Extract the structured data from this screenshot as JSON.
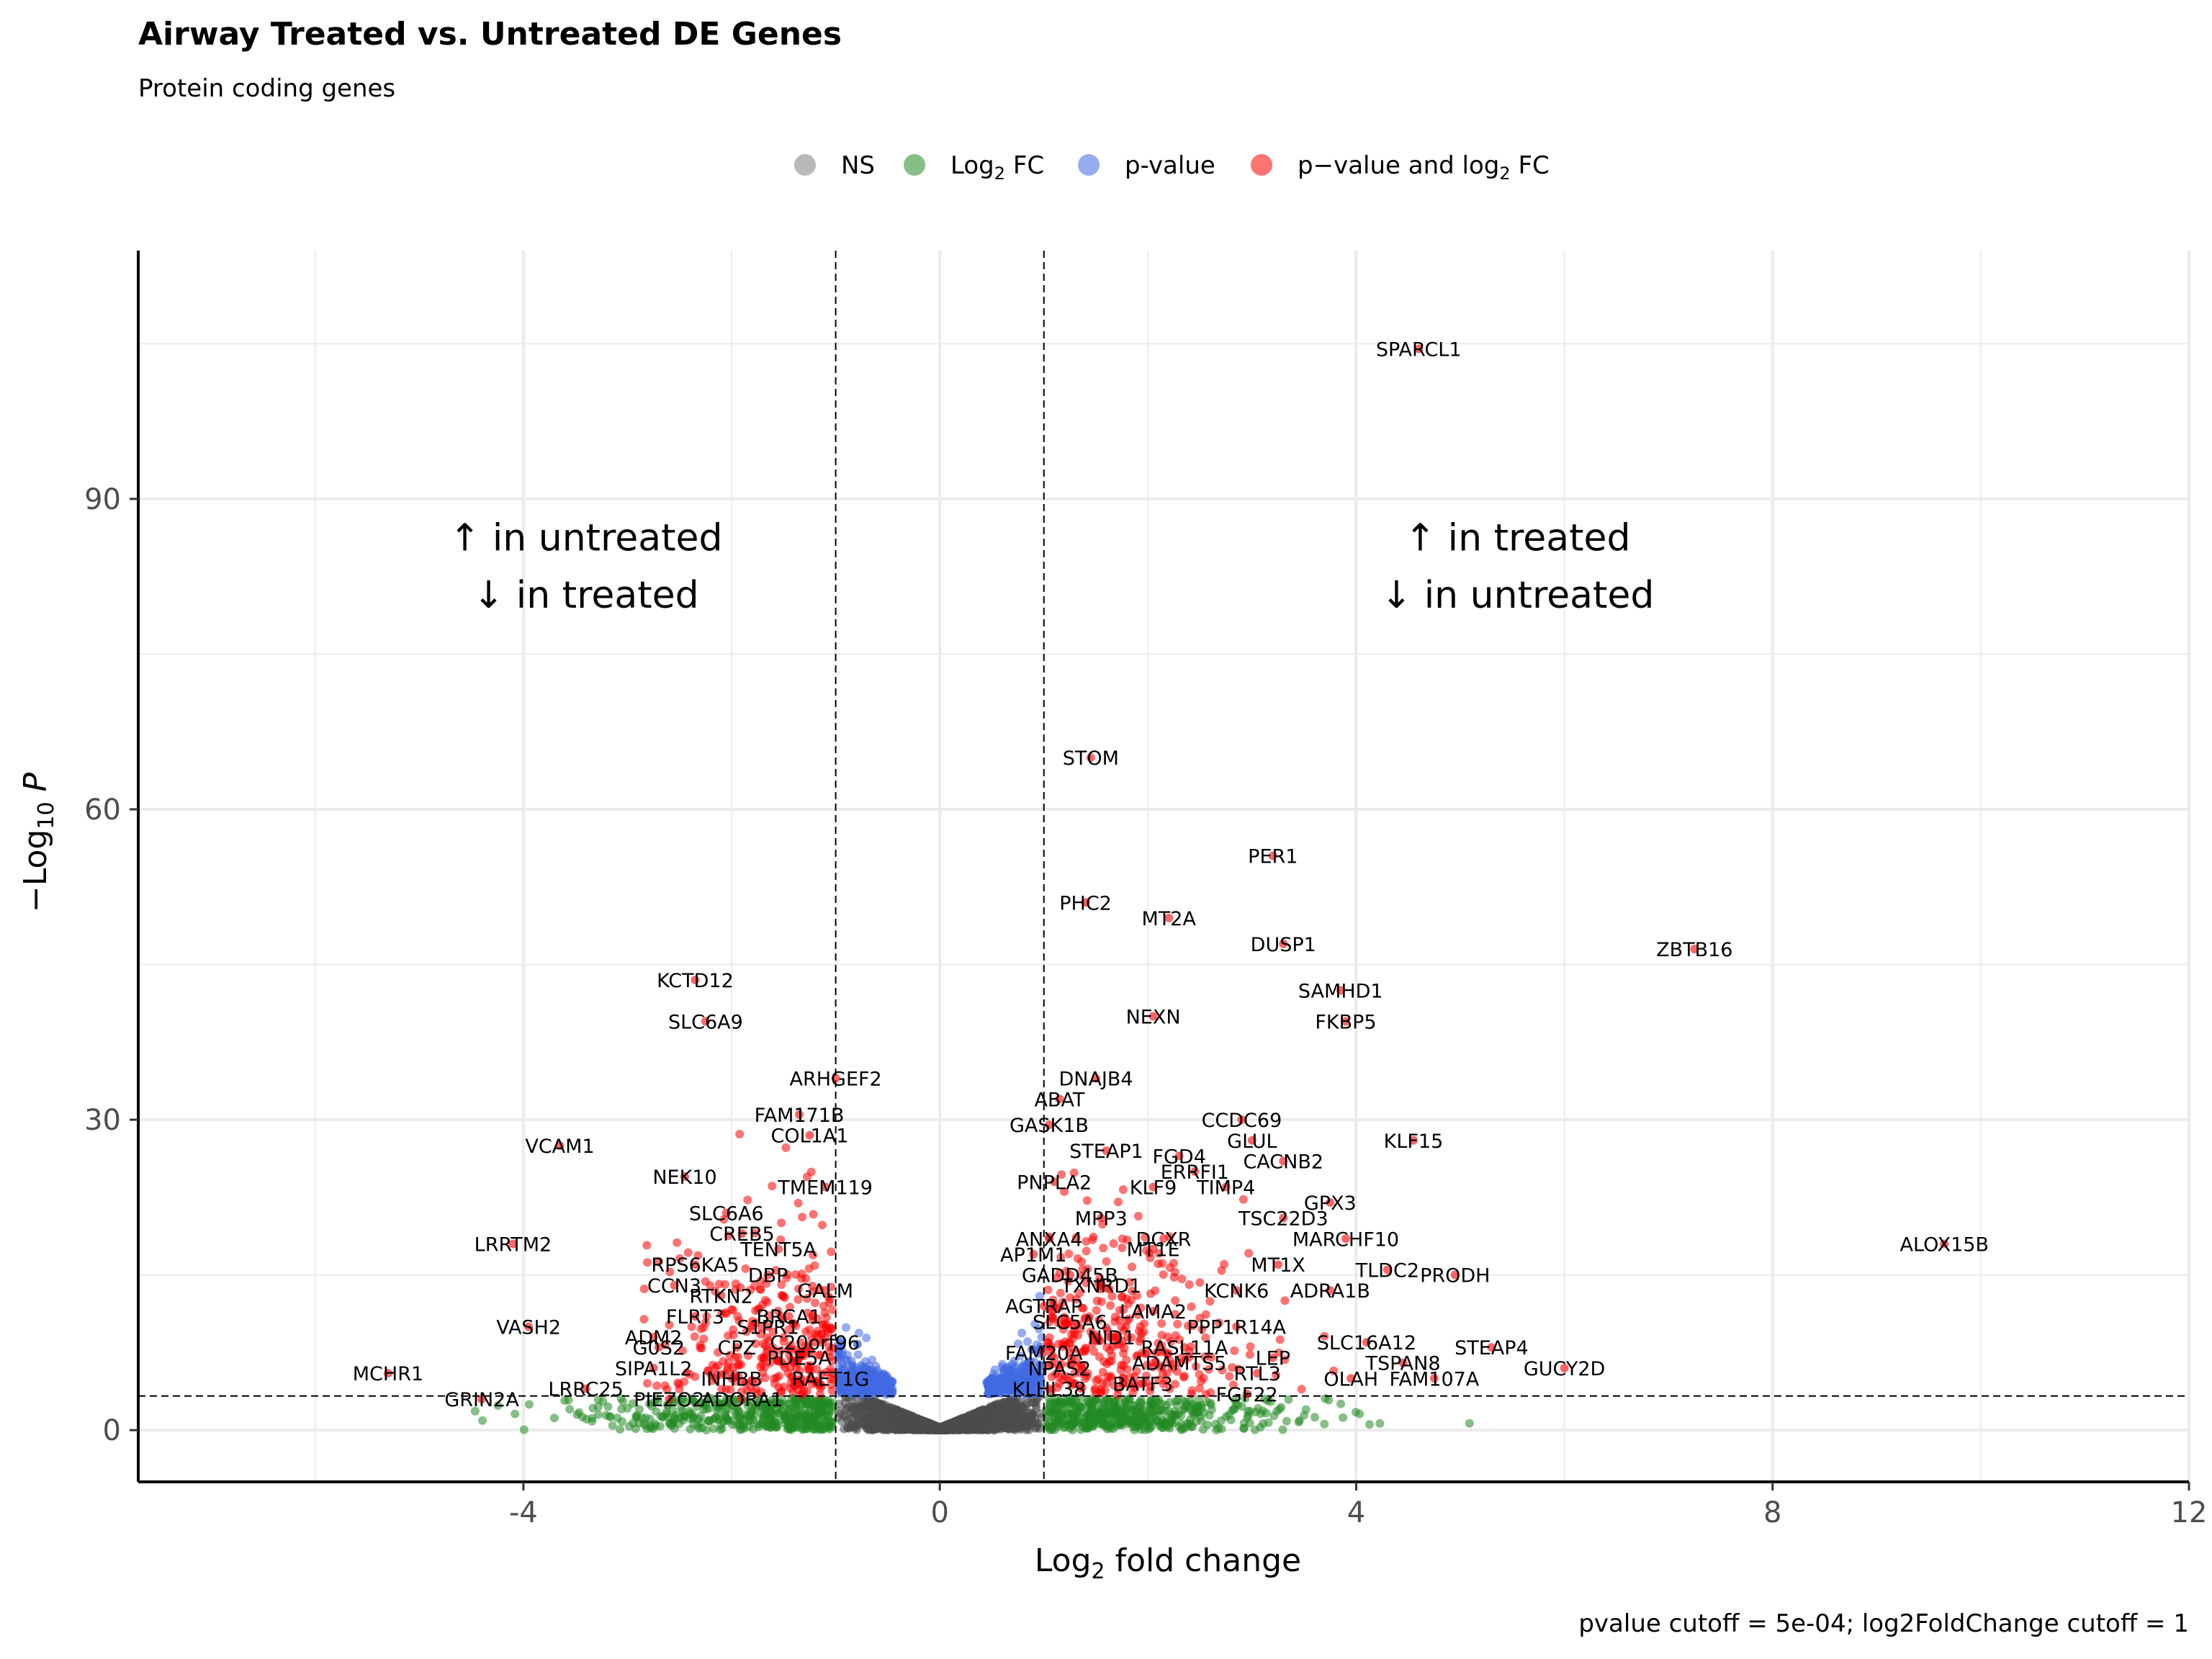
{
  "chart_data": {
    "type": "scatter",
    "title": "Airway Treated vs. Untreated DE Genes",
    "subtitle": "Protein coding genes",
    "xlabel": "Log2 fold change",
    "ylabel": "-Log10 P",
    "caption": "pvalue cutoff = 5e-04; log2FoldChange cutoff = 1",
    "xlim": [
      -7.7,
      12
    ],
    "ylim": [
      -5,
      114
    ],
    "x_ticks": [
      -4,
      0,
      4,
      8,
      12
    ],
    "y_ticks": [
      0,
      30,
      60,
      90
    ],
    "x_tick_labels": [
      "-4",
      "0",
      "4",
      "8",
      "12"
    ],
    "y_tick_labels": [
      "0",
      "30",
      "60",
      "90"
    ],
    "grid": true,
    "legend_position": "top",
    "legend": [
      {
        "key": "ns",
        "label": "NS",
        "color": "#808080"
      },
      {
        "key": "fc",
        "label": "Log2 FC",
        "color": "#228B22"
      },
      {
        "key": "p",
        "label": "p-value",
        "color": "#4169E1"
      },
      {
        "key": "both",
        "label": "p−value and log2 FC",
        "color": "#FF0000"
      }
    ],
    "cutoffs": {
      "log2fc": 1,
      "pvalue": 0.0005,
      "neg_log10_p": 3.3
    },
    "annotations": [
      {
        "text": "↑ in untreated",
        "x": -3.4,
        "y": 85
      },
      {
        "text": "↓ in treated",
        "x": -3.4,
        "y": 79.5
      },
      {
        "text": "↑ in treated",
        "x": 5.55,
        "y": 85
      },
      {
        "text": "↓ in untreated",
        "x": 5.55,
        "y": 79.5
      }
    ],
    "labeled_points": [
      {
        "label": "SPARCL1",
        "x": 4.6,
        "y": 104.5
      },
      {
        "label": "STOM",
        "x": 1.45,
        "y": 65
      },
      {
        "label": "PER1",
        "x": 3.2,
        "y": 55.5
      },
      {
        "label": "PHC2",
        "x": 1.4,
        "y": 51
      },
      {
        "label": "MT2A",
        "x": 2.2,
        "y": 49.5
      },
      {
        "label": "DUSP1",
        "x": 3.3,
        "y": 47
      },
      {
        "label": "ZBTB16",
        "x": 7.25,
        "y": 46.5
      },
      {
        "label": "KCTD12",
        "x": -2.35,
        "y": 43.5
      },
      {
        "label": "SAMHD1",
        "x": 3.85,
        "y": 42.5
      },
      {
        "label": "SLC6A9",
        "x": -2.25,
        "y": 39.5
      },
      {
        "label": "NEXN",
        "x": 2.05,
        "y": 40
      },
      {
        "label": "FKBP5",
        "x": 3.9,
        "y": 39.5
      },
      {
        "label": "ARHGEF2",
        "x": -1.0,
        "y": 34
      },
      {
        "label": "DNAJB4",
        "x": 1.5,
        "y": 34
      },
      {
        "label": "ABAT",
        "x": 1.15,
        "y": 32
      },
      {
        "label": "FAM171B",
        "x": -1.35,
        "y": 30.5
      },
      {
        "label": "GASK1B",
        "x": 1.05,
        "y": 29.5
      },
      {
        "label": "CCDC69",
        "x": 2.9,
        "y": 30
      },
      {
        "label": "COL1A1",
        "x": -1.25,
        "y": 28.5
      },
      {
        "label": "GLUL",
        "x": 3.0,
        "y": 28
      },
      {
        "label": "VCAM1",
        "x": -3.65,
        "y": 27.5
      },
      {
        "label": "KLF15",
        "x": 4.55,
        "y": 28
      },
      {
        "label": "STEAP1",
        "x": 1.6,
        "y": 27
      },
      {
        "label": "FGD4",
        "x": 2.3,
        "y": 26.5
      },
      {
        "label": "ERRFI1",
        "x": 2.45,
        "y": 25
      },
      {
        "label": "CACNB2",
        "x": 3.3,
        "y": 26
      },
      {
        "label": "NEK10",
        "x": -2.45,
        "y": 24.5
      },
      {
        "label": "TMEM119",
        "x": -1.1,
        "y": 23.5
      },
      {
        "label": "PNPLA2",
        "x": 1.1,
        "y": 24
      },
      {
        "label": "KLF9",
        "x": 2.05,
        "y": 23.5
      },
      {
        "label": "TIMP4",
        "x": 2.75,
        "y": 23.5
      },
      {
        "label": "GPX3",
        "x": 3.75,
        "y": 22
      },
      {
        "label": "SLC6A6",
        "x": -2.05,
        "y": 21
      },
      {
        "label": "MPP3",
        "x": 1.55,
        "y": 20.5
      },
      {
        "label": "TSC22D3",
        "x": 3.3,
        "y": 20.5
      },
      {
        "label": "CREB5",
        "x": -1.9,
        "y": 19
      },
      {
        "label": "LRRTM2",
        "x": -4.1,
        "y": 18
      },
      {
        "label": "DCXR",
        "x": 2.15,
        "y": 18.5
      },
      {
        "label": "MARCHF10",
        "x": 3.9,
        "y": 18.5
      },
      {
        "label": "ALOX15B",
        "x": 9.65,
        "y": 18
      },
      {
        "label": "ANXA4",
        "x": 1.05,
        "y": 18.5
      },
      {
        "label": "TENT5A",
        "x": -1.55,
        "y": 17.5
      },
      {
        "label": "AP1M1",
        "x": 0.9,
        "y": 17
      },
      {
        "label": "MT1E",
        "x": 2.05,
        "y": 17.5
      },
      {
        "label": "RPS6KA5",
        "x": -2.35,
        "y": 16
      },
      {
        "label": "MT1X",
        "x": 3.25,
        "y": 16
      },
      {
        "label": "TLDC2",
        "x": 4.3,
        "y": 15.5
      },
      {
        "label": "PRODH",
        "x": 4.95,
        "y": 15
      },
      {
        "label": "DBP",
        "x": -1.65,
        "y": 15
      },
      {
        "label": "GADD45B",
        "x": 1.25,
        "y": 15
      },
      {
        "label": "CCN3",
        "x": -2.55,
        "y": 14
      },
      {
        "label": "GALM",
        "x": -1.1,
        "y": 13.5
      },
      {
        "label": "TXNRD1",
        "x": 1.55,
        "y": 14
      },
      {
        "label": "KCNK6",
        "x": 2.85,
        "y": 13.5
      },
      {
        "label": "ADRA1B",
        "x": 3.75,
        "y": 13.5
      },
      {
        "label": "RTKN2",
        "x": -2.1,
        "y": 13
      },
      {
        "label": "AGTRAP",
        "x": 1.0,
        "y": 12
      },
      {
        "label": "FLRT3",
        "x": -2.35,
        "y": 11
      },
      {
        "label": "BRCA1",
        "x": -1.45,
        "y": 11
      },
      {
        "label": "LAMA2",
        "x": 2.05,
        "y": 11.5
      },
      {
        "label": "SLC5A6",
        "x": 1.25,
        "y": 10.5
      },
      {
        "label": "VASH2",
        "x": -3.95,
        "y": 10
      },
      {
        "label": "S1PR1",
        "x": -1.65,
        "y": 10
      },
      {
        "label": "PPP1R14A",
        "x": 2.85,
        "y": 10
      },
      {
        "label": "ADM2",
        "x": -2.75,
        "y": 9
      },
      {
        "label": "NID1",
        "x": 1.65,
        "y": 9
      },
      {
        "label": "SLC16A12",
        "x": 4.1,
        "y": 8.5
      },
      {
        "label": "RASL11A",
        "x": 2.35,
        "y": 8
      },
      {
        "label": "STEAP4",
        "x": 5.3,
        "y": 8
      },
      {
        "label": "G0S2",
        "x": -2.7,
        "y": 8
      },
      {
        "label": "CPZ",
        "x": -1.95,
        "y": 8
      },
      {
        "label": "C20orf96",
        "x": -1.2,
        "y": 8.5
      },
      {
        "label": "FAM20A",
        "x": 1.0,
        "y": 7.5
      },
      {
        "label": "LEP",
        "x": 3.2,
        "y": 7
      },
      {
        "label": "PDE5A",
        "x": -1.35,
        "y": 7
      },
      {
        "label": "ADAMTS5",
        "x": 2.3,
        "y": 6.5
      },
      {
        "label": "TSPAN8",
        "x": 4.45,
        "y": 6.5
      },
      {
        "label": "SIPA1L2",
        "x": -2.75,
        "y": 6
      },
      {
        "label": "NPAS2",
        "x": 1.15,
        "y": 6
      },
      {
        "label": "RTL3",
        "x": 3.05,
        "y": 5.5
      },
      {
        "label": "GUCY2D",
        "x": 6.0,
        "y": 6
      },
      {
        "label": "MCHR1",
        "x": -5.3,
        "y": 5.5
      },
      {
        "label": "INHBB",
        "x": -2.0,
        "y": 5
      },
      {
        "label": "RAET1G",
        "x": -1.05,
        "y": 5
      },
      {
        "label": "OLAH",
        "x": 3.95,
        "y": 5
      },
      {
        "label": "FAM107A",
        "x": 4.75,
        "y": 5
      },
      {
        "label": "LRRC25",
        "x": -3.4,
        "y": 4
      },
      {
        "label": "KLHL38",
        "x": 1.05,
        "y": 4
      },
      {
        "label": "BATF3",
        "x": 1.95,
        "y": 4.5
      },
      {
        "label": "FGF22",
        "x": 2.95,
        "y": 3.5
      },
      {
        "label": "GRIN2A",
        "x": -4.4,
        "y": 3
      },
      {
        "label": "PIEZO2",
        "x": -2.6,
        "y": 3
      },
      {
        "label": "ADORA1",
        "x": -1.9,
        "y": 3
      }
    ]
  }
}
